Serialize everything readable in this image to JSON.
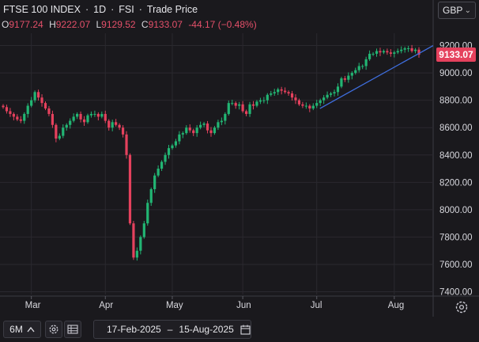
{
  "header": {
    "instrument": "FTSE 100 INDEX",
    "interval": "1D",
    "exchange": "FSI",
    "price_type": "Trade Price",
    "ohlc": {
      "o_label": "O",
      "o_value": "9177.24",
      "h_label": "H",
      "h_value": "9222.07",
      "l_label": "L",
      "l_value": "9129.52",
      "c_label": "C",
      "c_value": "9133.07",
      "change": "-44.17 (−0.48%)"
    },
    "currency": "GBP"
  },
  "last_price": "9133.07",
  "footer": {
    "range_button": "6M",
    "date_from": "17-Feb-2025",
    "date_sep": "–",
    "date_to": "15-Aug-2025"
  },
  "colors": {
    "up": "#22b573",
    "down": "#e5415d",
    "trendline": "#3f6fe0",
    "background": "#1a191d"
  },
  "icons": {
    "range": "chevron-up-icon",
    "settings": "gear-icon",
    "calendar": "calendar-icon",
    "table": "table-icon",
    "chart_settings": "settings-gear-icon"
  },
  "chart_data": {
    "type": "candlestick",
    "title": "FTSE 100 INDEX",
    "x_ticks": [
      "Mar",
      "Apr",
      "May",
      "Jun",
      "Jul",
      "Aug"
    ],
    "y_ticks": [
      "9200.00",
      "9000.00",
      "8800.00",
      "8600.00",
      "8400.00",
      "8200.00",
      "8000.00",
      "7800.00",
      "7600.00",
      "7400.00"
    ],
    "ylim": [
      7380,
      9290
    ],
    "close_series": [
      8750,
      8720,
      8700,
      8680,
      8660,
      8650,
      8700,
      8760,
      8800,
      8860,
      8820,
      8780,
      8740,
      8700,
      8620,
      8520,
      8540,
      8600,
      8620,
      8650,
      8680,
      8700,
      8660,
      8640,
      8690,
      8700,
      8700,
      8680,
      8700,
      8650,
      8600,
      8640,
      8620,
      8600,
      8550,
      8400,
      7900,
      7650,
      7700,
      7800,
      7900,
      8050,
      8150,
      8250,
      8300,
      8350,
      8400,
      8450,
      8470,
      8500,
      8550,
      8560,
      8600,
      8580,
      8560,
      8600,
      8620,
      8630,
      8580,
      8560,
      8600,
      8640,
      8650,
      8700,
      8780,
      8780,
      8760,
      8770,
      8720,
      8700,
      8770,
      8760,
      8790,
      8800,
      8800,
      8840,
      8850,
      8860,
      8880,
      8870,
      8860,
      8850,
      8820,
      8800,
      8770,
      8760,
      8760,
      8740,
      8760,
      8780,
      8800,
      8820,
      8840,
      8850,
      8860,
      8900,
      8960,
      8950,
      8980,
      9000,
      9020,
      9050,
      9050,
      9100,
      9140,
      9140,
      9160,
      9150,
      9160,
      9150,
      9140,
      9150,
      9160,
      9170,
      9180,
      9180,
      9160,
      9170,
      9133
    ],
    "trendline": {
      "from": [
        "Jul",
        8740
      ],
      "to": [
        "Aug",
        9200
      ]
    }
  }
}
